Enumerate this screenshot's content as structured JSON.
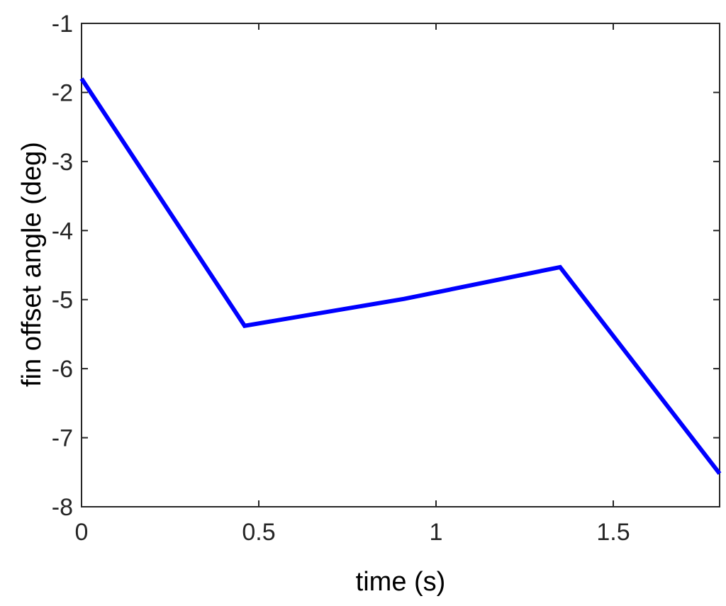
{
  "chart_data": {
    "type": "line",
    "title": "",
    "xlabel": "time (s)",
    "ylabel": "fin offset angle (deg)",
    "xlim": [
      0,
      1.8
    ],
    "ylim": [
      -8,
      -1
    ],
    "xticks": [
      0,
      0.5,
      1,
      1.5
    ],
    "xtick_labels": [
      "0",
      "0.5",
      "1",
      "1.5"
    ],
    "yticks": [
      -1,
      -2,
      -3,
      -4,
      -5,
      -6,
      -7,
      -8
    ],
    "ytick_labels": [
      "-1",
      "-2",
      "-3",
      "-4",
      "-5",
      "-6",
      "-7",
      "-8"
    ],
    "grid": false,
    "box": true,
    "series": [
      {
        "color": "#0000ff",
        "x": [
          0,
          0.46,
          0.91,
          1.35,
          1.8
        ],
        "y": [
          -1.8,
          -5.38,
          -4.99,
          -4.53,
          -7.52
        ]
      }
    ]
  }
}
